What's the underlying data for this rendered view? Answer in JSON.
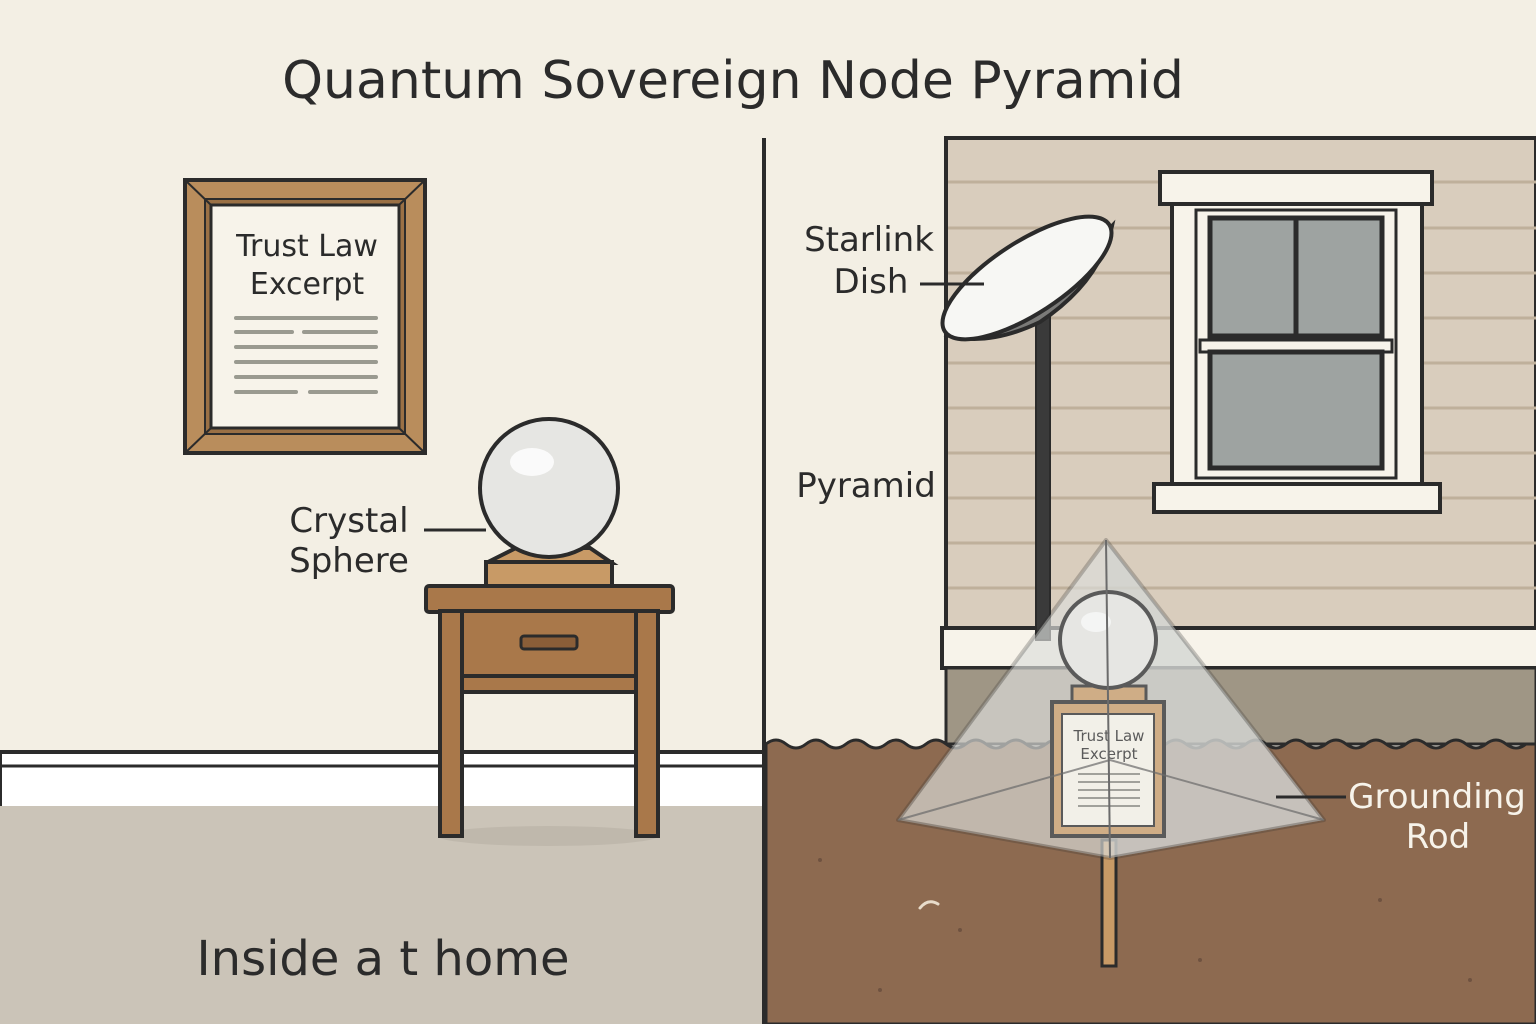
{
  "title": "Quantum Sovereign Node Pyramid",
  "left_panel": {
    "frame_title_line1": "Trust Law",
    "frame_title_line2": "Excerpt",
    "callout_sphere_line1": "Crystal",
    "callout_sphere_line2": "Sphere",
    "caption": "Inside a t home"
  },
  "right_panel": {
    "callout_dish_line1": "Starlink",
    "callout_dish_line2": "Dish",
    "callout_pyramid": "Pyramid",
    "callout_rod_line1": "Grounding",
    "callout_rod_line2": "Rod",
    "plaque_line1": "Trust Law",
    "plaque_line2": "Excerpt"
  },
  "colors": {
    "wall": "#f3efe4",
    "floor": "#cbc4b8",
    "siding": "#d9cdbd",
    "soil": "#8d6a50",
    "wood": "#b98d5c",
    "outline": "#2b2b2b"
  }
}
